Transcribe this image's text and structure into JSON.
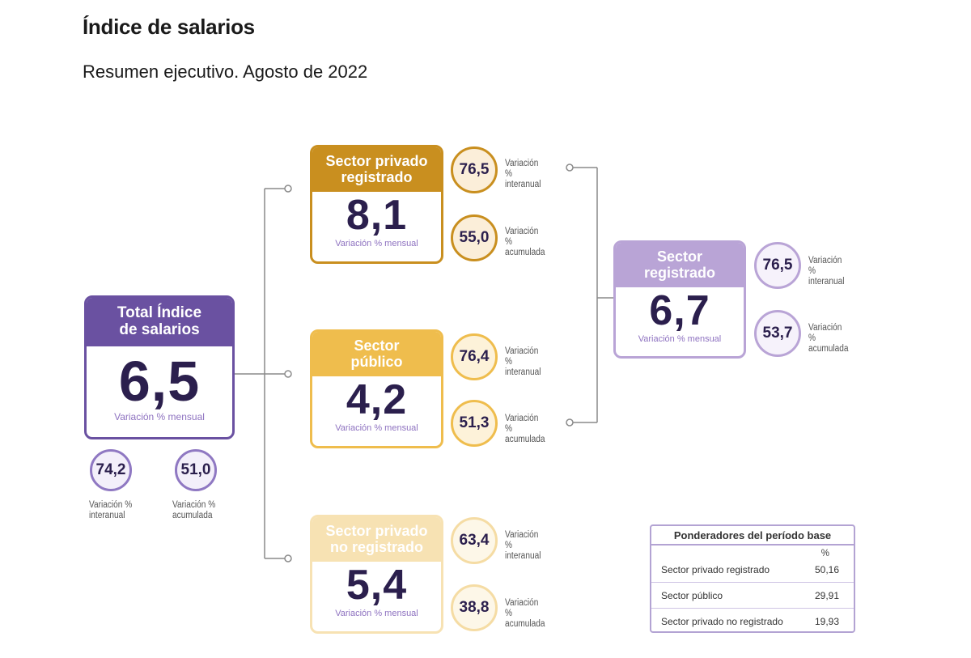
{
  "header": {
    "title": "Índice de salarios",
    "subtitle": "Resumen ejecutivo. Agosto de 2022"
  },
  "colors": {
    "total": "#6a51a1",
    "privado_registrado": "#c98f1f",
    "publico": "#efbd4d",
    "privado_no_registrado": "#f7e2b3",
    "sector_registrado": "#b9a4d6",
    "value_text": "#2b1f4d",
    "connector": "#8a8a8a"
  },
  "total": {
    "title": "Total Índice de salarios",
    "value": "6,5",
    "note": "Variación % mensual",
    "interanual": {
      "value": "74,2",
      "label": "Variación % interanual"
    },
    "acumulada": {
      "value": "51,0",
      "label": "Variación % acumulada"
    }
  },
  "privado_registrado": {
    "title": "Sector privado registrado",
    "value": "8,1",
    "note": "Variación % mensual",
    "interanual": {
      "value": "76,5",
      "label": "Variación % interanual"
    },
    "acumulada": {
      "value": "55,0",
      "label": "Variación % acumulada"
    }
  },
  "publico": {
    "title": "Sector público",
    "value": "4,2",
    "note": "Variación % mensual",
    "interanual": {
      "value": "76,4",
      "label": "Variación % interanual"
    },
    "acumulada": {
      "value": "51,3",
      "label": "Variación % acumulada"
    }
  },
  "privado_no_registrado": {
    "title": "Sector privado no registrado",
    "value": "5,4",
    "note": "Variación % mensual",
    "interanual": {
      "value": "63,4",
      "label": "Variación % interanual"
    },
    "acumulada": {
      "value": "38,8",
      "label": "Variación % acumulada"
    }
  },
  "sector_registrado": {
    "title": "Sector registrado",
    "value": "6,7",
    "note": "Variación % mensual",
    "interanual": {
      "value": "76,5",
      "label": "Variación % interanual"
    },
    "acumulada": {
      "value": "53,7",
      "label": "Variación % acumulada"
    }
  },
  "ponderadores": {
    "title": "Ponderadores del período base",
    "unit": "%",
    "rows": [
      {
        "label": "Sector privado registrado",
        "value": "50,16"
      },
      {
        "label": "Sector público",
        "value": "29,91"
      },
      {
        "label": "Sector privado no registrado",
        "value": "19,93"
      }
    ]
  }
}
